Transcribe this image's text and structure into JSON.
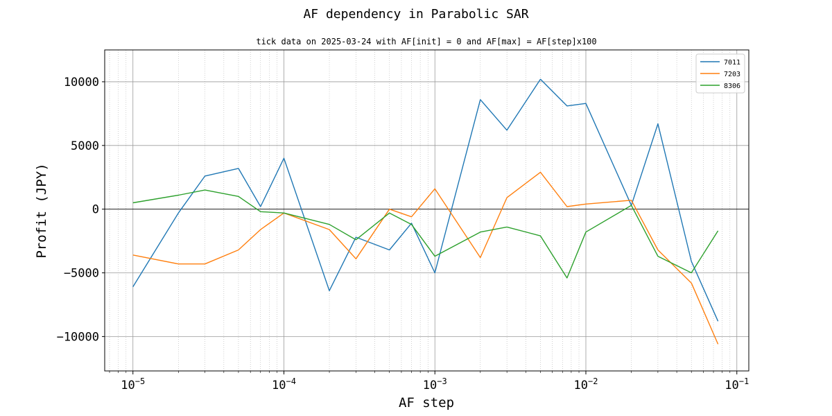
{
  "chart_data": {
    "type": "line",
    "title": "AF dependency in Parabolic SAR",
    "subtitle": "tick data on 2025-03-24 with AF[init] = 0 and AF[max] = AF[step]x100",
    "xlabel": "AF step",
    "ylabel": "Profit (JPY)",
    "xscale": "log",
    "xlim": [
      6.5e-06,
      0.12
    ],
    "ylim": [
      -12700,
      12500
    ],
    "yticks": [
      -10000,
      -5000,
      0,
      5000,
      10000
    ],
    "ytick_labels": [
      "−10000",
      "−5000",
      "0",
      "5000",
      "10000"
    ],
    "xticks": [
      {
        "value": 1e-05,
        "mantissa": "10",
        "exponent": "−5"
      },
      {
        "value": 0.0001,
        "mantissa": "10",
        "exponent": "−4"
      },
      {
        "value": 0.001,
        "mantissa": "10",
        "exponent": "−3"
      },
      {
        "value": 0.01,
        "mantissa": "10",
        "exponent": "−2"
      },
      {
        "value": 0.1,
        "mantissa": "10",
        "exponent": "−1"
      }
    ],
    "grid": true,
    "legend_position": "upper-right",
    "x": [
      1e-05,
      2e-05,
      3e-05,
      5e-05,
      7e-05,
      0.0001,
      0.0002,
      0.0003,
      0.0005,
      0.0007,
      0.001,
      0.002,
      0.003,
      0.005,
      0.0075,
      0.01,
      0.02,
      0.03,
      0.05,
      0.075
    ],
    "series": [
      {
        "name": "7011",
        "color": "#1f77b4",
        "values": [
          -6100,
          -300,
          2600,
          3200,
          200,
          4000,
          -6400,
          -2200,
          -3200,
          -1100,
          -5000,
          8600,
          6200,
          10200,
          8100,
          8300,
          300,
          6700,
          -4100,
          -8800
        ]
      },
      {
        "name": "7203",
        "color": "#ff7f0e",
        "values": [
          -3600,
          -4300,
          -4300,
          -3200,
          -1600,
          -300,
          -1600,
          -3900,
          0,
          -600,
          1600,
          -3800,
          900,
          2900,
          200,
          400,
          700,
          -3200,
          -5800,
          -10600
        ]
      },
      {
        "name": "8306",
        "color": "#2ca02c",
        "values": [
          500,
          1100,
          1500,
          1000,
          -200,
          -300,
          -1200,
          -2400,
          -300,
          -1200,
          -3700,
          -1800,
          -1400,
          -2100,
          -5400,
          -1800,
          300,
          -3700,
          -5000,
          -1700
        ]
      }
    ]
  }
}
